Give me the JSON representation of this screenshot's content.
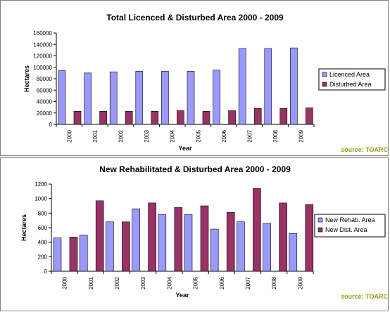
{
  "colors": {
    "series_a": "#9999ff",
    "series_b": "#993366",
    "source_text": "#9c9c1a"
  },
  "chart_data": [
    {
      "type": "bar",
      "title": "Total Licenced & Disturbed Area 2000 - 2009",
      "xlabel": "Year",
      "ylabel": "Hectares",
      "categories": [
        "2000",
        "2001",
        "2002",
        "2003",
        "2004",
        "2005",
        "2006",
        "2007",
        "2008",
        "2009"
      ],
      "ylim": [
        0,
        160000
      ],
      "yticks": [
        "0",
        "20000",
        "40000",
        "60000",
        "80000",
        "100000",
        "120000",
        "140000",
        "160000"
      ],
      "grid": false,
      "legend_position": "right",
      "series": [
        {
          "name": "Licenced Area",
          "values": [
            94000,
            90000,
            92000,
            93000,
            93000,
            93000,
            95000,
            133000,
            133000,
            134000
          ]
        },
        {
          "name": "Disturbed Area",
          "values": [
            23000,
            23000,
            23000,
            23000,
            24000,
            23000,
            24000,
            28000,
            28000,
            29000
          ]
        }
      ],
      "source": "source: TOARC"
    },
    {
      "type": "bar",
      "title": "New Rehabilitated & Disturbed Area 2000 - 2009",
      "xlabel": "Year",
      "ylabel": "Hectares",
      "categories": [
        "2000",
        "2001",
        "2002",
        "2003",
        "2004",
        "2005",
        "2006",
        "2007",
        "2008",
        "2009"
      ],
      "ylim": [
        0,
        1200
      ],
      "yticks": [
        "0",
        "200",
        "400",
        "600",
        "800",
        "1000",
        "1200"
      ],
      "grid": false,
      "legend_position": "right",
      "series": [
        {
          "name": "New Rehab. Area",
          "values": [
            460,
            500,
            680,
            860,
            780,
            780,
            580,
            680,
            660,
            520
          ]
        },
        {
          "name": "New Dist. Area",
          "values": [
            470,
            970,
            680,
            940,
            880,
            900,
            810,
            1140,
            940,
            920
          ]
        }
      ],
      "source": "source: TOARC"
    }
  ]
}
